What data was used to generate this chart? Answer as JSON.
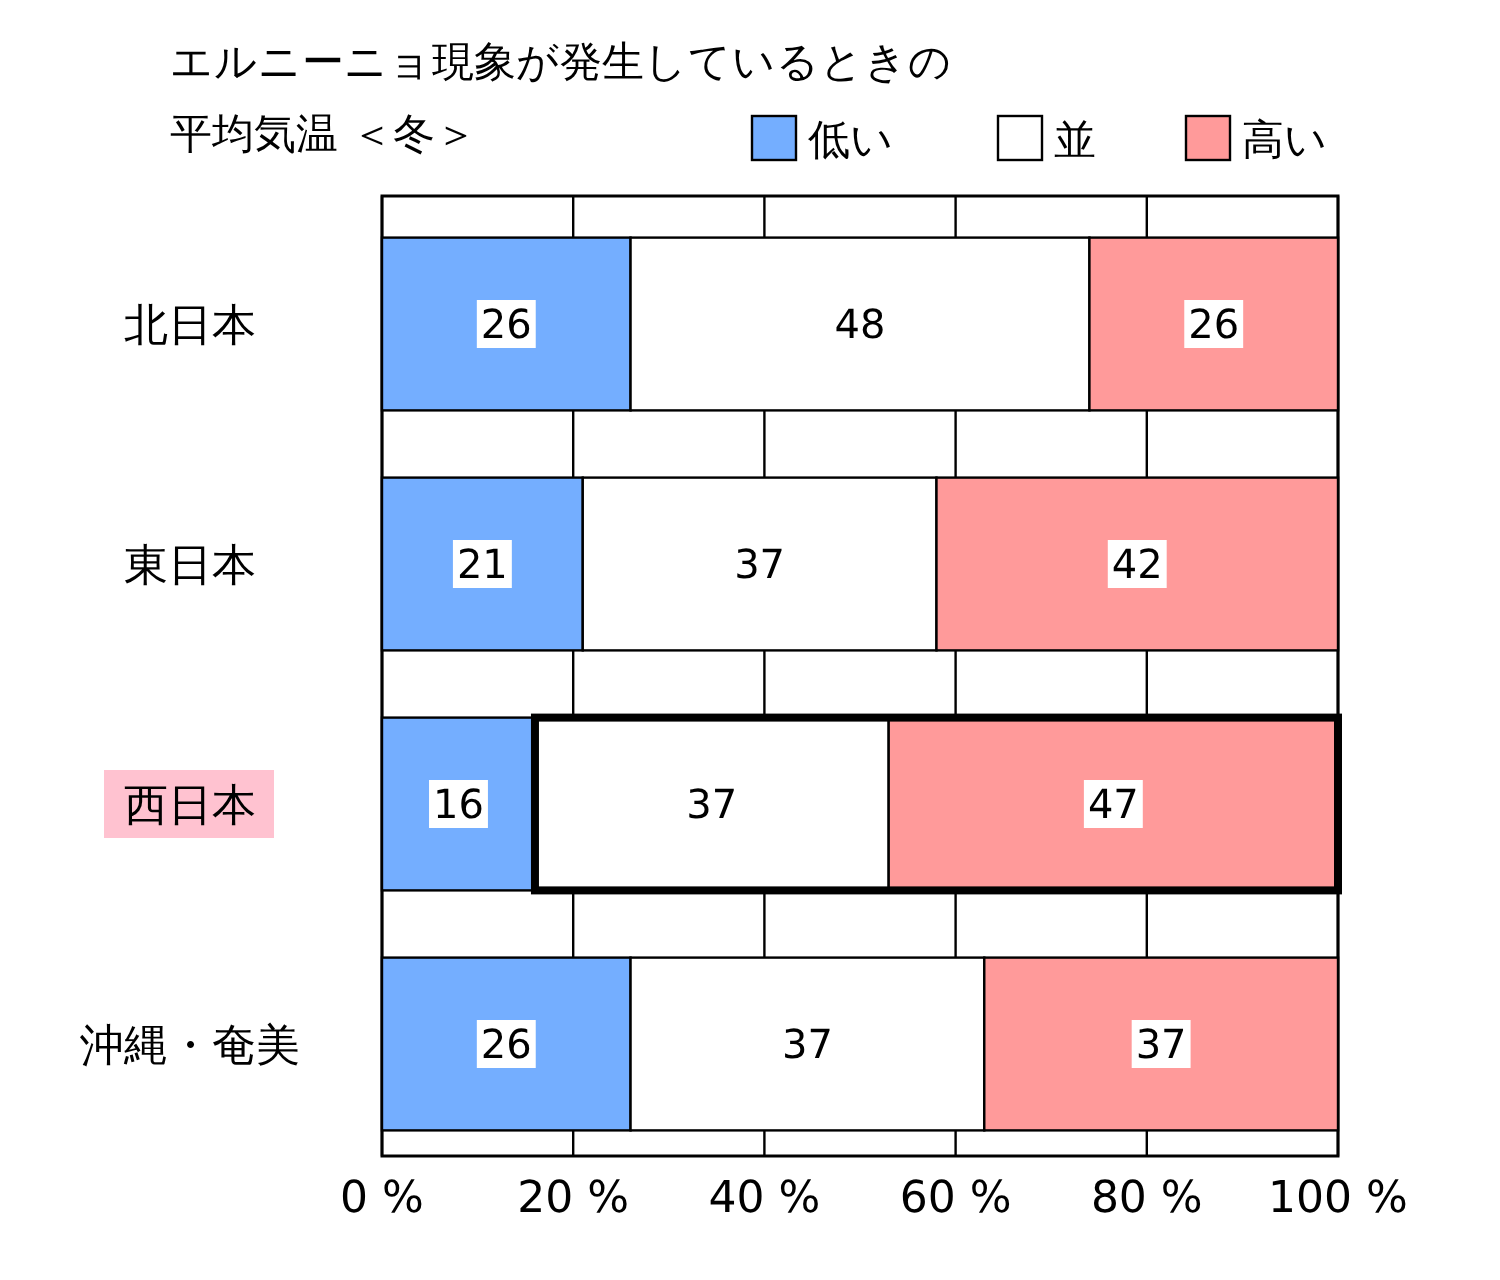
{
  "chart_data": {
    "type": "bar",
    "title": "エルニーニョ現象が発生しているときの平均気温 ＜冬＞",
    "orientation": "horizontal",
    "stacked": true,
    "categories": [
      "北日本",
      "東日本",
      "西日本",
      "沖縄・奄美"
    ],
    "series": [
      {
        "name": "低い",
        "color": "#74aeff",
        "values": [
          26,
          21,
          16,
          26
        ]
      },
      {
        "name": "並",
        "color": "#ffffff",
        "values": [
          48,
          37,
          37,
          37
        ]
      },
      {
        "name": "高い",
        "color": "#ff9a9a",
        "values": [
          26,
          42,
          47,
          37
        ]
      }
    ],
    "xlim": [
      0,
      100
    ],
    "xticks": [
      {
        "value": 0,
        "label": "0 %"
      },
      {
        "value": 20,
        "label": "20 %"
      },
      {
        "value": 40,
        "label": "40 %"
      },
      {
        "value": 60,
        "label": "60 %"
      },
      {
        "value": 80,
        "label": "80 %"
      },
      {
        "value": 100,
        "label": "100 %"
      }
    ],
    "grid": "x",
    "legend": "top right",
    "data_labels": true
  }
}
